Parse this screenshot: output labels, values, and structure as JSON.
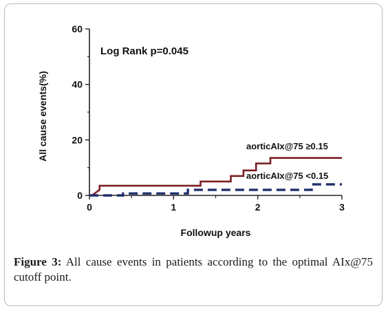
{
  "chart_data": {
    "type": "line",
    "xlabel": "Followup years",
    "ylabel": "All cause events(%)",
    "xlim": [
      0,
      3
    ],
    "ylim": [
      0,
      60
    ],
    "xticks": [
      "0",
      "1",
      "2",
      "3"
    ],
    "yticks": [
      "0",
      "20",
      "40",
      "60"
    ],
    "grid": false,
    "annotations": [
      {
        "text": "Log Rank p=0.045"
      }
    ],
    "series": [
      {
        "name": "aorticAIx@75 ≥0.15",
        "color": "#7a1f22",
        "style": "solid",
        "step": true,
        "x": [
          0,
          0.03,
          0.12,
          0.12,
          1.32,
          1.32,
          1.68,
          1.68,
          1.83,
          1.83,
          1.98,
          1.98,
          2.15,
          2.15,
          3.0
        ],
        "y": [
          0,
          0,
          2,
          3.5,
          3.5,
          5,
          5,
          7,
          7,
          9,
          9,
          11.5,
          11.5,
          13.5,
          13.5
        ]
      },
      {
        "name": "aorticAIx@75 <0.15",
        "color": "#1f2f6b",
        "style": "dashed",
        "step": true,
        "x": [
          0,
          0.4,
          0.4,
          1.17,
          1.17,
          2.64,
          2.64,
          3.0
        ],
        "y": [
          0,
          0,
          0.7,
          0.7,
          2,
          2,
          4,
          4
        ]
      }
    ]
  },
  "caption": {
    "label": "Figure 3:",
    "text": " All cause events in patients according to the optimal AIx@75 cutoff point."
  }
}
